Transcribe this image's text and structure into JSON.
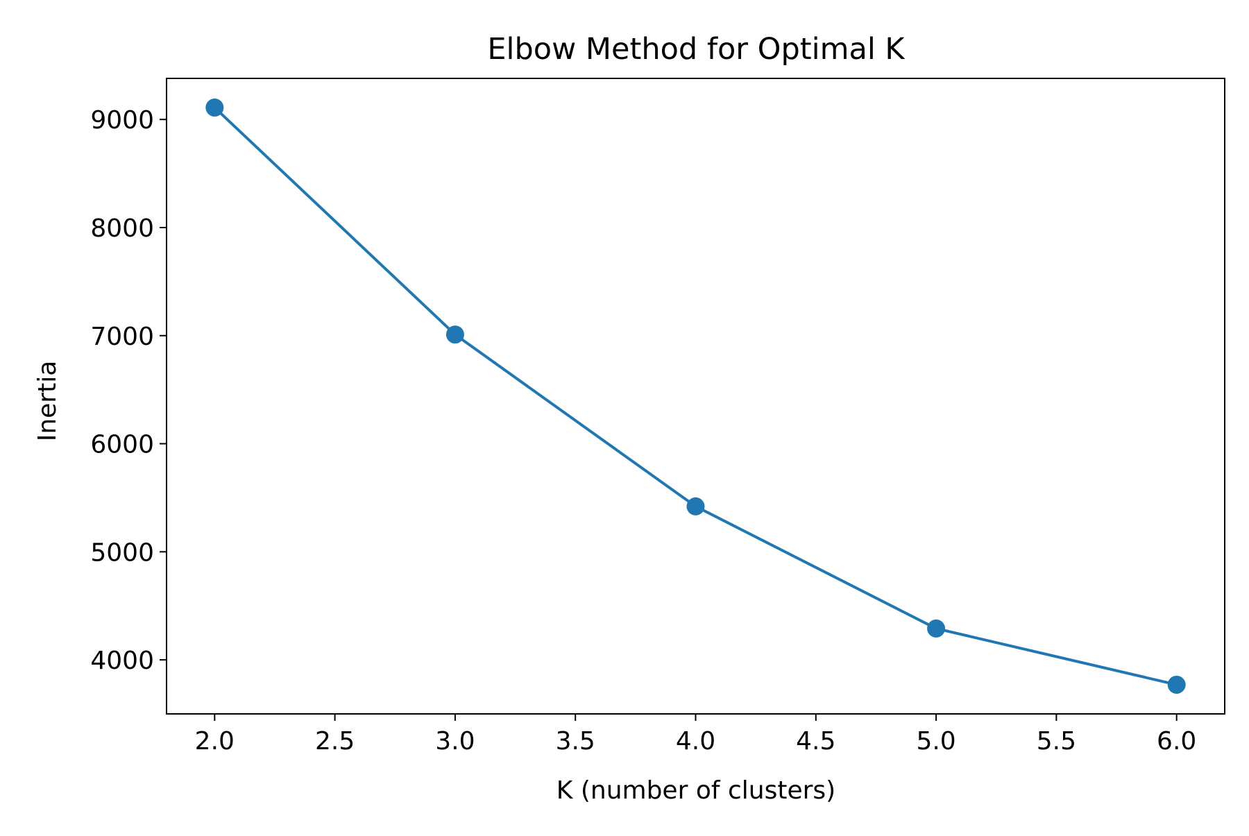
{
  "chart_data": {
    "type": "line",
    "title": "Elbow Method for Optimal K",
    "xlabel": "K (number of clusters)",
    "ylabel": "Inertia",
    "x": [
      2,
      3,
      4,
      5,
      6
    ],
    "series": [
      {
        "values": [
          9110,
          7010,
          5420,
          4290,
          3770
        ],
        "color": "#1f77b4",
        "marker": "circle"
      }
    ],
    "xlim": [
      1.8,
      6.2
    ],
    "ylim": [
      3500,
      9380
    ],
    "xticks": [
      "2.0",
      "2.5",
      "3.0",
      "3.5",
      "4.0",
      "4.5",
      "5.0",
      "5.5",
      "6.0"
    ],
    "yticks": [
      "4000",
      "5000",
      "6000",
      "7000",
      "8000",
      "9000"
    ],
    "grid": false,
    "legend": "none"
  }
}
